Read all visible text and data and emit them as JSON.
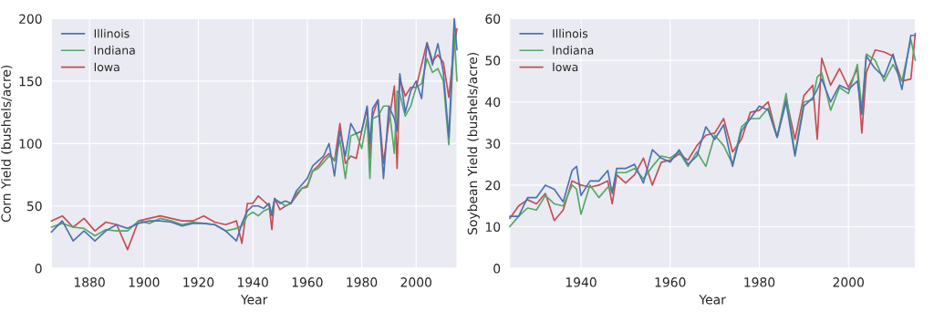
{
  "chart_data": [
    {
      "type": "line",
      "xlabel": "Year",
      "ylabel": "Corn Yield (bushels/acre)",
      "xlim": [
        1866,
        2015
      ],
      "ylim": [
        0,
        200
      ],
      "xticks": [
        1880,
        1900,
        1920,
        1940,
        1960,
        1980,
        2000
      ],
      "yticks": [
        0,
        50,
        100,
        150,
        200
      ],
      "grid": true,
      "legend": "top left",
      "x": [
        1866,
        1870,
        1874,
        1878,
        1882,
        1886,
        1890,
        1894,
        1898,
        1902,
        1906,
        1910,
        1914,
        1918,
        1922,
        1926,
        1930,
        1934,
        1936,
        1938,
        1940,
        1942,
        1944,
        1946,
        1947,
        1948,
        1950,
        1952,
        1954,
        1956,
        1958,
        1960,
        1962,
        1964,
        1966,
        1968,
        1970,
        1972,
        1974,
        1976,
        1978,
        1980,
        1982,
        1983,
        1984,
        1986,
        1988,
        1990,
        1992,
        1993,
        1994,
        1996,
        1998,
        2000,
        2002,
        2004,
        2006,
        2008,
        2010,
        2012,
        2014,
        2015
      ],
      "series": [
        {
          "name": "Illinois",
          "color": "#4c72b0",
          "values": [
            29,
            38,
            22,
            30,
            22,
            30,
            35,
            32,
            36,
            38,
            38,
            37,
            34,
            36,
            36,
            35,
            30,
            22,
            36,
            46,
            50,
            50,
            48,
            52,
            42,
            56,
            52,
            54,
            52,
            62,
            67,
            72,
            82,
            86,
            90,
            100,
            74,
            110,
            90,
            116,
            108,
            110,
            130,
            100,
            128,
            135,
            72,
            130,
            120,
            110,
            156,
            125,
            142,
            150,
            136,
            180,
            163,
            180,
            157,
            105,
            200,
            175
          ]
        },
        {
          "name": "Indiana",
          "color": "#55a868",
          "values": [
            33,
            36,
            33,
            32,
            26,
            31,
            30,
            30,
            38,
            36,
            40,
            38,
            35,
            37,
            36,
            35,
            30,
            32,
            34,
            42,
            45,
            42,
            46,
            48,
            45,
            55,
            53,
            50,
            52,
            60,
            64,
            65,
            78,
            80,
            85,
            90,
            87,
            103,
            72,
            106,
            108,
            96,
            120,
            72,
            120,
            122,
            130,
            130,
            92,
            142,
            140,
            122,
            130,
            145,
            148,
            168,
            157,
            160,
            150,
            99,
            188,
            150
          ]
        },
        {
          "name": "Iowa",
          "color": "#c44e52",
          "values": [
            38,
            42,
            33,
            40,
            30,
            37,
            35,
            15,
            38,
            40,
            42,
            40,
            38,
            38,
            42,
            37,
            35,
            38,
            20,
            52,
            52,
            58,
            54,
            50,
            31,
            56,
            47,
            50,
            52,
            58,
            64,
            66,
            78,
            82,
            88,
            92,
            86,
            116,
            84,
            90,
            88,
            110,
            128,
            88,
            122,
            135,
            84,
            118,
            146,
            80,
            152,
            138,
            145,
            145,
            163,
            181,
            166,
            171,
            165,
            137,
            178,
            192
          ]
        }
      ]
    },
    {
      "type": "line",
      "xlabel": "Year",
      "ylabel": "Soybean Yield (bushels/acre)",
      "xlim": [
        1924,
        2015
      ],
      "ylim": [
        0,
        60
      ],
      "xticks": [
        1940,
        1960,
        1980,
        2000
      ],
      "yticks": [
        0,
        10,
        20,
        30,
        40,
        50,
        60
      ],
      "grid": true,
      "legend": "top left",
      "x": [
        1924,
        1926,
        1928,
        1930,
        1932,
        1934,
        1936,
        1938,
        1939,
        1940,
        1942,
        1944,
        1946,
        1947,
        1948,
        1950,
        1952,
        1954,
        1956,
        1958,
        1960,
        1962,
        1964,
        1966,
        1968,
        1970,
        1972,
        1974,
        1976,
        1978,
        1980,
        1982,
        1984,
        1986,
        1988,
        1990,
        1992,
        1993,
        1994,
        1996,
        1998,
        2000,
        2002,
        2003,
        2004,
        2006,
        2008,
        2010,
        2012,
        2014,
        2015
      ],
      "series": [
        {
          "name": "Illinois",
          "color": "#4c72b0",
          "values": [
            12.5,
            12.5,
            17,
            17,
            20,
            19,
            16,
            23.5,
            24.5,
            17.5,
            21,
            21,
            23.5,
            18,
            24,
            24,
            25,
            20.5,
            28.5,
            26.5,
            25.5,
            28.5,
            25,
            27,
            34,
            31,
            34.5,
            24.5,
            33,
            36,
            39,
            38,
            31.5,
            40,
            27,
            39,
            41,
            43,
            45.5,
            40,
            44,
            43,
            45,
            37,
            51,
            48,
            46,
            51.5,
            43,
            56,
            56
          ]
        },
        {
          "name": "Indiana",
          "color": "#55a868",
          "values": [
            10,
            12.5,
            14.5,
            14,
            17.5,
            15.5,
            15,
            20,
            19,
            13,
            20,
            17,
            19.5,
            18.5,
            23,
            23,
            24,
            21.5,
            24.5,
            27,
            26.5,
            28,
            24.5,
            28,
            24.5,
            32,
            29.5,
            25,
            34,
            36,
            36,
            38.5,
            31.5,
            42,
            27.5,
            40,
            40.5,
            46,
            47,
            38,
            43.5,
            42,
            49,
            38,
            51.5,
            50,
            45,
            49,
            45,
            55,
            50
          ]
        },
        {
          "name": "Iowa",
          "color": "#c44e52",
          "values": [
            12,
            15,
            16.5,
            15.5,
            18,
            11.5,
            14,
            21,
            20.5,
            20,
            19.5,
            20,
            21,
            15.5,
            22.5,
            20.5,
            22.5,
            26.5,
            20,
            25.5,
            26,
            27.5,
            26,
            29.5,
            32,
            32.5,
            36,
            28,
            31,
            37.5,
            38,
            40,
            31.5,
            41,
            31,
            41.5,
            44,
            31,
            50.5,
            44,
            48,
            43.5,
            48,
            32.5,
            47,
            52.5,
            52,
            51,
            45,
            45.5,
            56.5
          ]
        }
      ]
    }
  ]
}
